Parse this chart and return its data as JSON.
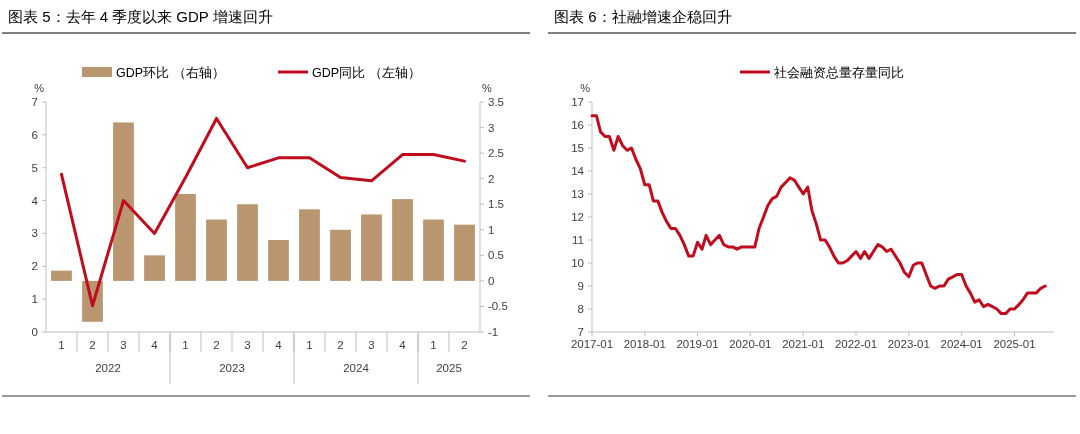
{
  "chart_data": [
    {
      "type": "bar",
      "title": "图表 5：去年 4 季度以来 GDP 增速回升",
      "categories": [
        "1",
        "2",
        "3",
        "4",
        "1",
        "2",
        "3",
        "4",
        "1",
        "2",
        "3",
        "4",
        "1",
        "2"
      ],
      "series": [
        {
          "name": "GDP环比 （右轴）",
          "type": "bar",
          "axis": "y2",
          "color": "#b99670",
          "values": [
            0.2,
            -0.8,
            3.1,
            0.5,
            1.7,
            1.2,
            1.5,
            0.8,
            1.4,
            1.0,
            1.3,
            1.6,
            1.2,
            1.1
          ]
        },
        {
          "name": "GDP同比 （左轴）",
          "type": "line",
          "color": "#c00d1e",
          "values": [
            4.8,
            0.8,
            4.0,
            3.0,
            4.7,
            6.5,
            5.0,
            5.3,
            5.3,
            4.7,
            4.6,
            5.4,
            5.4,
            5.2
          ]
        }
      ],
      "annotations": [
        "2022",
        "2023",
        "2024",
        "2025"
      ],
      "ylabel": "%",
      "y2label": "%",
      "ylim": [
        0,
        7
      ],
      "yticks": [
        0,
        1,
        2,
        3,
        4,
        5,
        6,
        7
      ],
      "y2lim": [
        -1,
        3.5
      ],
      "y2ticks": [
        -1,
        -0.5,
        0,
        0.5,
        1,
        1.5,
        2,
        2.5,
        3,
        3.5
      ],
      "legend": "top",
      "grid": false
    },
    {
      "type": "line",
      "title": "图表 6：社融增速企稳回升",
      "ylabel": "%",
      "legend": "top",
      "grid": false,
      "x": [
        "2017-01",
        "2017-02",
        "2017-03",
        "2017-04",
        "2017-05",
        "2017-06",
        "2017-07",
        "2017-08",
        "2017-09",
        "2017-10",
        "2017-11",
        "2017-12",
        "2018-01",
        "2018-02",
        "2018-03",
        "2018-04",
        "2018-05",
        "2018-06",
        "2018-07",
        "2018-08",
        "2018-09",
        "2018-10",
        "2018-11",
        "2018-12",
        "2019-01",
        "2019-02",
        "2019-03",
        "2019-04",
        "2019-05",
        "2019-06",
        "2019-07",
        "2019-08",
        "2019-09",
        "2019-10",
        "2019-11",
        "2019-12",
        "2020-01",
        "2020-02",
        "2020-03",
        "2020-04",
        "2020-05",
        "2020-06",
        "2020-07",
        "2020-08",
        "2020-09",
        "2020-10",
        "2020-11",
        "2020-12",
        "2021-01",
        "2021-02",
        "2021-03",
        "2021-04",
        "2021-05",
        "2021-06",
        "2021-07",
        "2021-08",
        "2021-09",
        "2021-10",
        "2021-11",
        "2021-12",
        "2022-01",
        "2022-02",
        "2022-03",
        "2022-04",
        "2022-05",
        "2022-06",
        "2022-07",
        "2022-08",
        "2022-09",
        "2022-10",
        "2022-11",
        "2022-12",
        "2023-01",
        "2023-02",
        "2023-03",
        "2023-04",
        "2023-05",
        "2023-06",
        "2023-07",
        "2023-08",
        "2023-09",
        "2023-10",
        "2023-11",
        "2023-12",
        "2024-01",
        "2024-02",
        "2024-03",
        "2024-04",
        "2024-05",
        "2024-06",
        "2024-07",
        "2024-08",
        "2024-09",
        "2024-10",
        "2024-11",
        "2024-12",
        "2025-01",
        "2025-02",
        "2025-03",
        "2025-04",
        "2025-05",
        "2025-06",
        "2025-07",
        "2025-08"
      ],
      "series": [
        {
          "name": "社会融资总量存量同比",
          "color": "#c00d1e",
          "values": [
            16.4,
            16.4,
            15.7,
            15.5,
            15.5,
            14.9,
            15.5,
            15.1,
            14.9,
            15.0,
            14.5,
            14.1,
            13.4,
            13.4,
            12.7,
            12.7,
            12.2,
            11.8,
            11.5,
            11.5,
            11.2,
            10.8,
            10.3,
            10.3,
            10.9,
            10.6,
            11.2,
            10.8,
            11.0,
            11.2,
            10.8,
            10.7,
            10.7,
            10.6,
            10.7,
            10.7,
            10.7,
            10.7,
            11.5,
            12.0,
            12.5,
            12.8,
            12.9,
            13.3,
            13.5,
            13.7,
            13.6,
            13.3,
            13.0,
            13.3,
            12.3,
            11.7,
            11.0,
            11.0,
            10.7,
            10.3,
            10.0,
            10.0,
            10.1,
            10.3,
            10.5,
            10.2,
            10.5,
            10.2,
            10.5,
            10.8,
            10.7,
            10.5,
            10.6,
            10.3,
            10.0,
            9.6,
            9.4,
            9.9,
            10.0,
            10.0,
            9.5,
            9.0,
            8.9,
            9.0,
            9.0,
            9.3,
            9.4,
            9.5,
            9.5,
            9.0,
            8.7,
            8.3,
            8.4,
            8.1,
            8.2,
            8.1,
            8.0,
            7.8,
            7.8,
            8.0,
            8.0,
            8.2,
            8.4,
            8.7,
            8.7,
            8.7,
            8.9,
            9.0
          ]
        }
      ],
      "xlim": [
        "2017-01",
        "2025-10"
      ],
      "xticks": [
        "2017-01",
        "2018-01",
        "2019-01",
        "2020-01",
        "2021-01",
        "2022-01",
        "2023-01",
        "2024-01",
        "2025-01"
      ],
      "ylim": [
        7,
        17
      ],
      "yticks": [
        7,
        8,
        9,
        10,
        11,
        12,
        13,
        14,
        15,
        16,
        17
      ]
    }
  ]
}
